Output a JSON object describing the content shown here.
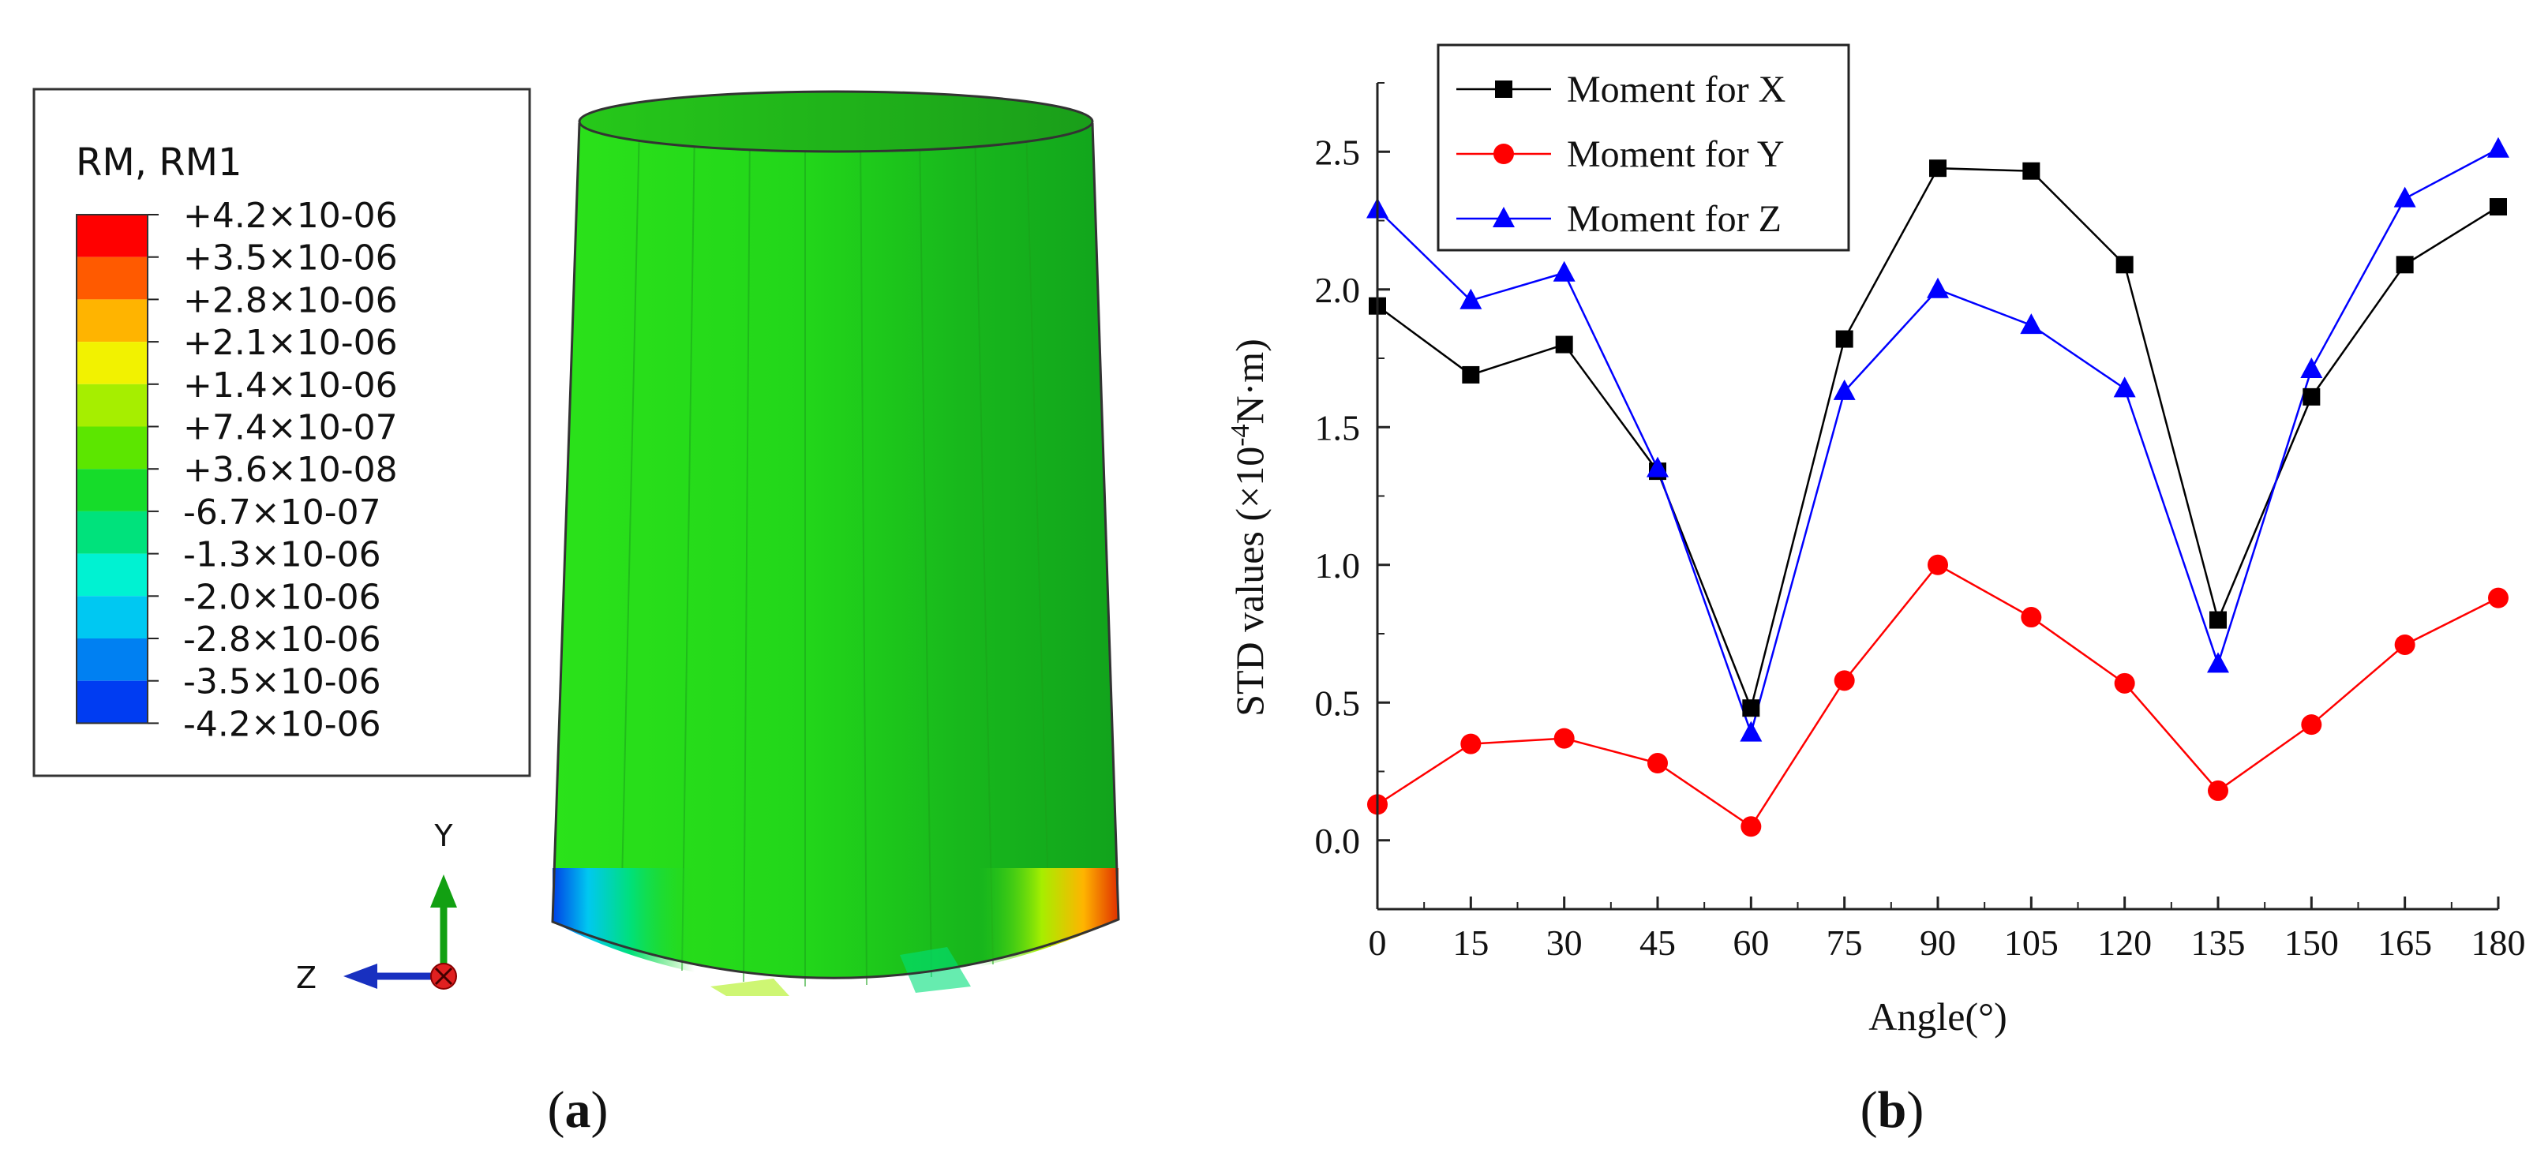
{
  "panel_a": {
    "caption_letter": "a",
    "legend": {
      "title": "RM, RM1",
      "levels": [
        {
          "label": "+4.2×10-06",
          "color": "#ff0000"
        },
        {
          "label": "+3.5×10-06",
          "color": "#ff5a00"
        },
        {
          "label": "+2.8×10-06",
          "color": "#ffb400"
        },
        {
          "label": "+2.1×10-06",
          "color": "#f2f200"
        },
        {
          "label": "+1.4×10-06",
          "color": "#a6ee00"
        },
        {
          "label": "+7.4×10-07",
          "color": "#5ce600"
        },
        {
          "label": "+3.6×10-08",
          "color": "#16dc2a"
        },
        {
          "label": "-6.7×10-07",
          "color": "#00e27c"
        },
        {
          "label": "-1.3×10-06",
          "color": "#00f2d2"
        },
        {
          "label": "-2.0×10-06",
          "color": "#00c8f2"
        },
        {
          "label": "-2.8×10-06",
          "color": "#0080f2"
        },
        {
          "label": "-3.5×10-06",
          "color": "#003cf2"
        },
        {
          "label": "-4.2×10-06",
          "color": "#0000dc"
        }
      ]
    },
    "axes": {
      "y_label": "Y",
      "z_label": "Z"
    }
  },
  "panel_b": {
    "caption_letter": "b"
  },
  "chart_data": {
    "type": "line",
    "title": "",
    "xlabel": "Angle(°)",
    "ylabel_pre": "STD values (×10",
    "ylabel_exp": "-4",
    "ylabel_post": "N·m)",
    "x": [
      0,
      15,
      30,
      45,
      60,
      75,
      90,
      105,
      120,
      135,
      150,
      165,
      180
    ],
    "xlim": [
      0,
      180
    ],
    "ylim": [
      -0.25,
      2.75
    ],
    "xticks": [
      "0",
      "15",
      "30",
      "45",
      "60",
      "75",
      "90",
      "105",
      "120",
      "135",
      "150",
      "165",
      "180"
    ],
    "yticks": [
      "0.0",
      "0.5",
      "1.0",
      "1.5",
      "2.0",
      "2.5"
    ],
    "legend_position": "top-left",
    "series": [
      {
        "name": "Moment for X",
        "color": "#000000",
        "marker": "square",
        "values": [
          1.94,
          1.69,
          1.8,
          1.34,
          0.48,
          1.82,
          2.44,
          2.43,
          2.09,
          0.8,
          1.61,
          2.09,
          2.3
        ]
      },
      {
        "name": "Moment for Y",
        "color": "#ff0000",
        "marker": "circle",
        "values": [
          0.13,
          0.35,
          0.37,
          0.28,
          0.05,
          0.58,
          1.0,
          0.81,
          0.57,
          0.18,
          0.42,
          0.71,
          0.88
        ]
      },
      {
        "name": "Moment for Z",
        "color": "#0000ff",
        "marker": "triangle",
        "values": [
          2.29,
          1.96,
          2.06,
          1.35,
          0.39,
          1.63,
          2.0,
          1.87,
          1.64,
          0.64,
          1.71,
          2.33,
          2.51
        ]
      }
    ]
  }
}
